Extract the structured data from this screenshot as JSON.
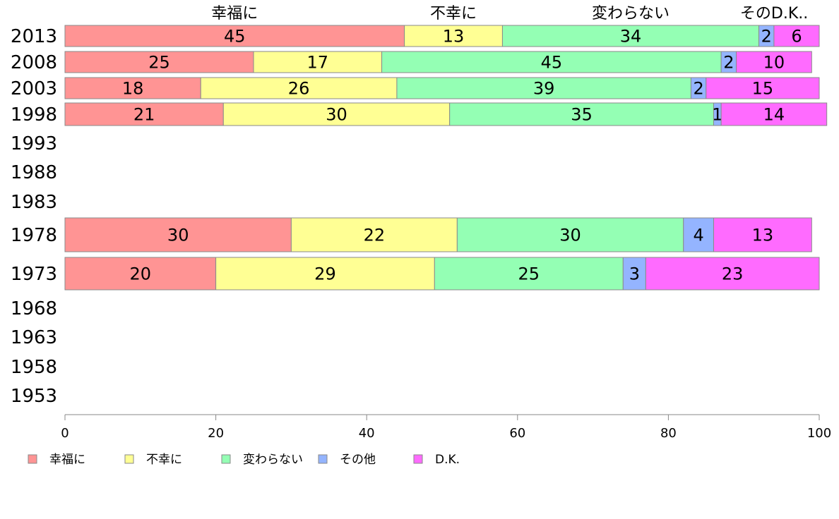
{
  "chart_data": {
    "type": "bar",
    "orientation": "horizontal",
    "stacked": true,
    "categories": [
      "2013",
      "2008",
      "2003",
      "1998",
      "1993",
      "1988",
      "1983",
      "1978",
      "1973",
      "1968",
      "1963",
      "1958",
      "1953"
    ],
    "series": [
      {
        "name": "幸福に",
        "header": "幸福に",
        "color": "#ff9494",
        "values": [
          45,
          25,
          18,
          21,
          null,
          null,
          null,
          30,
          20,
          null,
          null,
          null,
          null
        ]
      },
      {
        "name": "不幸に",
        "header": "不幸に",
        "color": "#ffff94",
        "values": [
          13,
          17,
          26,
          30,
          null,
          null,
          null,
          22,
          29,
          null,
          null,
          null,
          null
        ]
      },
      {
        "name": "変わらない",
        "header": "変わらない",
        "color": "#94ffb4",
        "values": [
          34,
          45,
          39,
          35,
          null,
          null,
          null,
          30,
          25,
          null,
          null,
          null,
          null
        ]
      },
      {
        "name": "その他",
        "header": "その",
        "color": "#94b4ff",
        "values": [
          2,
          2,
          2,
          1,
          null,
          null,
          null,
          4,
          3,
          null,
          null,
          null,
          null
        ]
      },
      {
        "name": "D.K.",
        "header": "D.K..",
        "color": "#ff6bff",
        "values": [
          6,
          10,
          15,
          14,
          null,
          null,
          null,
          13,
          23,
          null,
          null,
          null,
          null
        ]
      }
    ],
    "xlim": [
      0,
      100
    ],
    "xticks": [
      0,
      20,
      40,
      60,
      80,
      100
    ],
    "grid": false,
    "legend_position": "bottom"
  }
}
